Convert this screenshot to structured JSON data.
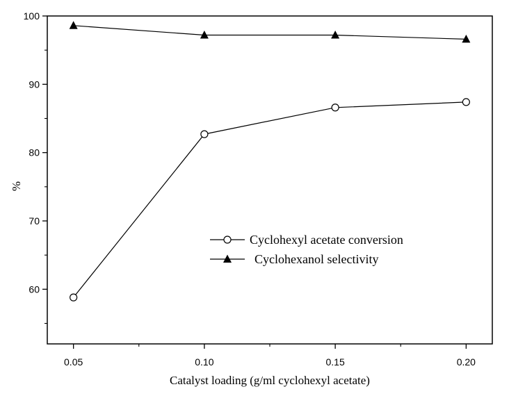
{
  "chart_data": {
    "type": "line",
    "title": "",
    "xlabel": "Catalyst loading (g/ml cyclohexyl acetate)",
    "ylabel": "%",
    "xlim": [
      0.04,
      0.21
    ],
    "ylim": [
      52,
      100
    ],
    "xticks": [
      0.05,
      0.1,
      0.15,
      0.2
    ],
    "xtick_labels": [
      "0.05",
      "0.10",
      "0.15",
      "0.20"
    ],
    "yticks": [
      60,
      70,
      80,
      90,
      100
    ],
    "ytick_labels": [
      "60",
      "70",
      "80",
      "90",
      "100"
    ],
    "x": [
      0.05,
      0.1,
      0.15,
      0.2
    ],
    "series": [
      {
        "name": "Cyclohexyl acetate conversion",
        "marker": "open-circle",
        "values": [
          58.8,
          82.7,
          86.6,
          87.4
        ]
      },
      {
        "name": "Cyclohexanol selectivity",
        "marker": "filled-triangle",
        "values": [
          98.6,
          97.2,
          97.2,
          96.6
        ]
      }
    ],
    "legend_position": "center-right",
    "grid": false
  }
}
